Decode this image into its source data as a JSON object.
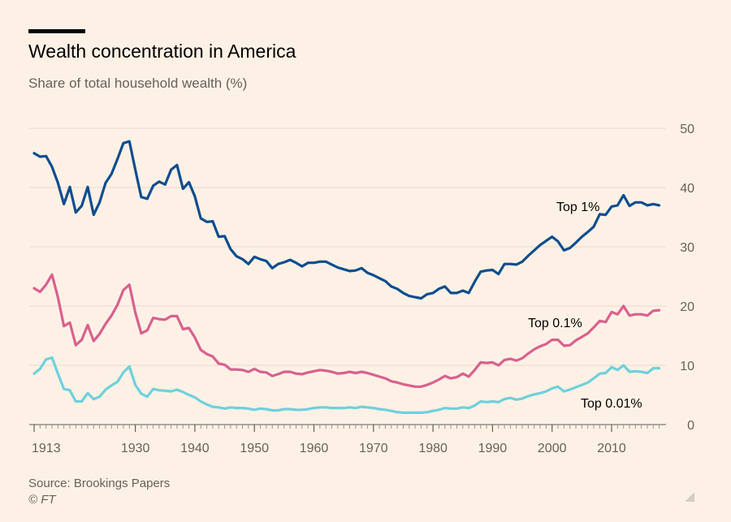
{
  "title": "Wealth concentration in America",
  "subtitle": "Share of total household wealth (%)",
  "source": "Source: Brookings Papers",
  "copyright": "© FT",
  "colors": {
    "background": "#fdf1e5",
    "grid": "#e6d9ce",
    "axis_text": "#66605c",
    "top1": "#0f4d8f",
    "top01": "#d9608f",
    "top001": "#6fd0dc"
  },
  "chart_data": {
    "type": "line",
    "title": "Wealth concentration in America",
    "subtitle": "Share of total household wealth (%)",
    "xlim": [
      1913,
      2018
    ],
    "ylim": [
      0,
      50
    ],
    "yticks": [
      0,
      10,
      20,
      30,
      40,
      50
    ],
    "xtick_labels": [
      "1913",
      "1930",
      "1940",
      "1950",
      "1960",
      "1970",
      "1980",
      "1990",
      "2000",
      "2010"
    ],
    "xtick_values": [
      1913,
      1930,
      1940,
      1950,
      1960,
      1970,
      1980,
      1990,
      2000,
      2010
    ],
    "grid": true,
    "legend": "inline labels",
    "x": [
      1913,
      1914,
      1915,
      1916,
      1917,
      1918,
      1919,
      1920,
      1921,
      1922,
      1923,
      1924,
      1925,
      1926,
      1927,
      1928,
      1929,
      1930,
      1931,
      1932,
      1933,
      1934,
      1935,
      1936,
      1937,
      1938,
      1939,
      1940,
      1941,
      1942,
      1943,
      1944,
      1945,
      1946,
      1947,
      1948,
      1949,
      1950,
      1951,
      1952,
      1953,
      1954,
      1955,
      1956,
      1957,
      1958,
      1959,
      1960,
      1961,
      1962,
      1963,
      1964,
      1965,
      1966,
      1967,
      1968,
      1969,
      1970,
      1971,
      1972,
      1973,
      1974,
      1975,
      1976,
      1977,
      1978,
      1979,
      1980,
      1981,
      1982,
      1983,
      1984,
      1985,
      1986,
      1987,
      1988,
      1989,
      1990,
      1991,
      1992,
      1993,
      1994,
      1995,
      1996,
      1997,
      1998,
      1999,
      2000,
      2001,
      2002,
      2003,
      2004,
      2005,
      2006,
      2007,
      2008,
      2009,
      2010,
      2011,
      2012,
      2013,
      2014,
      2015,
      2016,
      2017,
      2018
    ],
    "series": [
      {
        "name": "Top 1%",
        "values": [
          45.8,
          45.2,
          45.3,
          43.5,
          40.8,
          37.2,
          40.1,
          35.8,
          36.9,
          40.1,
          35.4,
          37.5,
          40.8,
          42.3,
          44.8,
          47.5,
          47.8,
          43.0,
          38.4,
          38.1,
          40.3,
          41.0,
          40.5,
          43.0,
          43.8,
          39.8,
          40.9,
          38.5,
          34.8,
          34.2,
          34.3,
          31.7,
          31.8,
          29.6,
          28.4,
          27.9,
          27.1,
          28.3,
          27.9,
          27.6,
          26.4,
          27.1,
          27.4,
          27.8,
          27.3,
          26.7,
          27.3,
          27.3,
          27.5,
          27.5,
          27.0,
          26.5,
          26.2,
          25.9,
          26.0,
          26.4,
          25.6,
          25.2,
          24.7,
          24.2,
          23.3,
          22.9,
          22.2,
          21.7,
          21.5,
          21.3,
          22.0,
          22.2,
          22.9,
          23.3,
          22.2,
          22.2,
          22.6,
          22.2,
          24.1,
          25.8,
          26.0,
          26.1,
          25.4,
          27.1,
          27.1,
          27.0,
          27.5,
          28.5,
          29.4,
          30.3,
          31.0,
          31.7,
          30.9,
          29.4,
          29.8,
          30.7,
          31.7,
          32.5,
          33.4,
          35.5,
          35.4,
          36.8,
          37.0,
          38.7,
          36.9,
          37.5,
          37.5,
          37.0,
          37.2,
          37.0
        ]
      },
      {
        "name": "Top 0.1%",
        "values": [
          23.0,
          22.4,
          23.6,
          25.3,
          21.5,
          16.6,
          17.2,
          13.4,
          14.3,
          16.8,
          14.1,
          15.3,
          17.0,
          18.4,
          20.2,
          22.7,
          23.6,
          18.9,
          15.4,
          15.9,
          18.0,
          17.8,
          17.7,
          18.3,
          18.3,
          16.1,
          16.3,
          14.7,
          12.6,
          11.9,
          11.5,
          10.3,
          10.1,
          9.3,
          9.3,
          9.2,
          8.9,
          9.4,
          8.9,
          8.8,
          8.2,
          8.5,
          8.9,
          8.9,
          8.6,
          8.5,
          8.8,
          9.0,
          9.2,
          9.1,
          8.9,
          8.6,
          8.7,
          8.9,
          8.7,
          8.9,
          8.7,
          8.4,
          8.1,
          7.8,
          7.3,
          7.1,
          6.8,
          6.6,
          6.4,
          6.4,
          6.7,
          7.1,
          7.6,
          8.2,
          7.8,
          8.0,
          8.6,
          8.1,
          9.2,
          10.5,
          10.4,
          10.5,
          10.0,
          10.9,
          11.1,
          10.8,
          11.2,
          12.0,
          12.7,
          13.2,
          13.6,
          14.3,
          14.3,
          13.3,
          13.4,
          14.2,
          14.8,
          15.4,
          16.4,
          17.5,
          17.3,
          19.0,
          18.6,
          20.0,
          18.4,
          18.6,
          18.6,
          18.4,
          19.2,
          19.3
        ]
      },
      {
        "name": "Top 0.01%",
        "values": [
          8.6,
          9.4,
          11.0,
          11.3,
          8.6,
          6.0,
          5.8,
          3.9,
          3.9,
          5.3,
          4.3,
          4.7,
          5.9,
          6.6,
          7.2,
          8.8,
          9.8,
          6.7,
          5.2,
          4.7,
          6.0,
          5.8,
          5.7,
          5.6,
          5.9,
          5.5,
          5.0,
          4.6,
          3.9,
          3.4,
          3.0,
          2.9,
          2.7,
          2.9,
          2.8,
          2.8,
          2.7,
          2.5,
          2.7,
          2.6,
          2.4,
          2.4,
          2.6,
          2.6,
          2.5,
          2.5,
          2.6,
          2.8,
          2.9,
          2.9,
          2.8,
          2.8,
          2.8,
          2.9,
          2.8,
          3.0,
          2.9,
          2.8,
          2.6,
          2.5,
          2.3,
          2.1,
          2.0,
          2.0,
          2.0,
          2.0,
          2.1,
          2.3,
          2.5,
          2.8,
          2.7,
          2.7,
          2.9,
          2.8,
          3.2,
          3.9,
          3.8,
          3.9,
          3.8,
          4.3,
          4.5,
          4.2,
          4.4,
          4.8,
          5.1,
          5.3,
          5.6,
          6.1,
          6.4,
          5.6,
          5.9,
          6.3,
          6.7,
          7.1,
          7.8,
          8.6,
          8.7,
          9.7,
          9.2,
          10.0,
          8.9,
          9.0,
          8.9,
          8.7,
          9.5,
          9.5
        ]
      }
    ],
    "annotations": [
      "Top 1%",
      "Top 0.1%",
      "Top 0.01%"
    ]
  }
}
